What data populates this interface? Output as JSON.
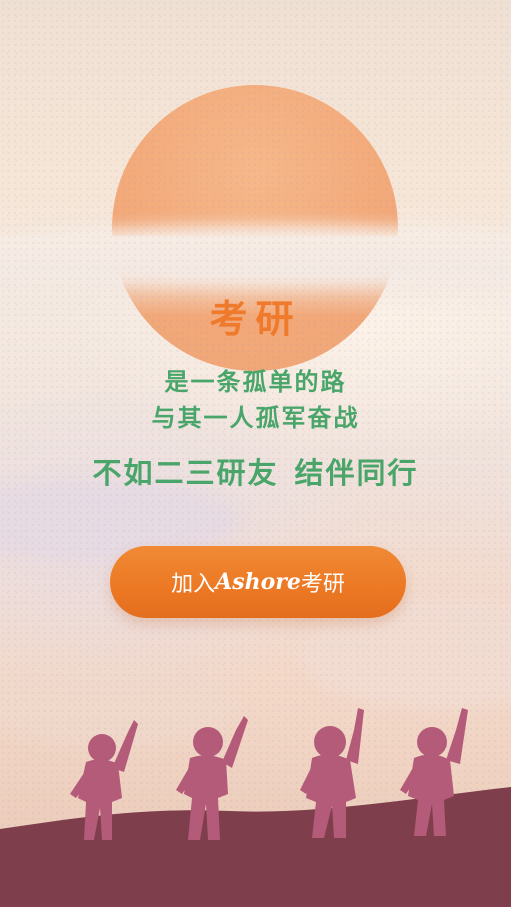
{
  "banner": {
    "title": "考研",
    "line1": "是一条孤单的路",
    "line2": "与其一人孤军奋战",
    "line3_part1": "不如二三研友",
    "line3_part2": "结伴同行"
  },
  "cta": {
    "prefix": "加入",
    "brand": "Ashore",
    "suffix": "考研"
  },
  "colors": {
    "title": "#ef7a2c",
    "text": "#4aa56a",
    "button": "#ec7824",
    "sun": "#f3a979",
    "ground": "#7e3e4c",
    "figures": "#b35b79"
  },
  "illustration": {
    "figure_icon_names": [
      "child-figure-icon",
      "child-figure-icon",
      "child-figure-icon",
      "child-figure-icon"
    ]
  }
}
